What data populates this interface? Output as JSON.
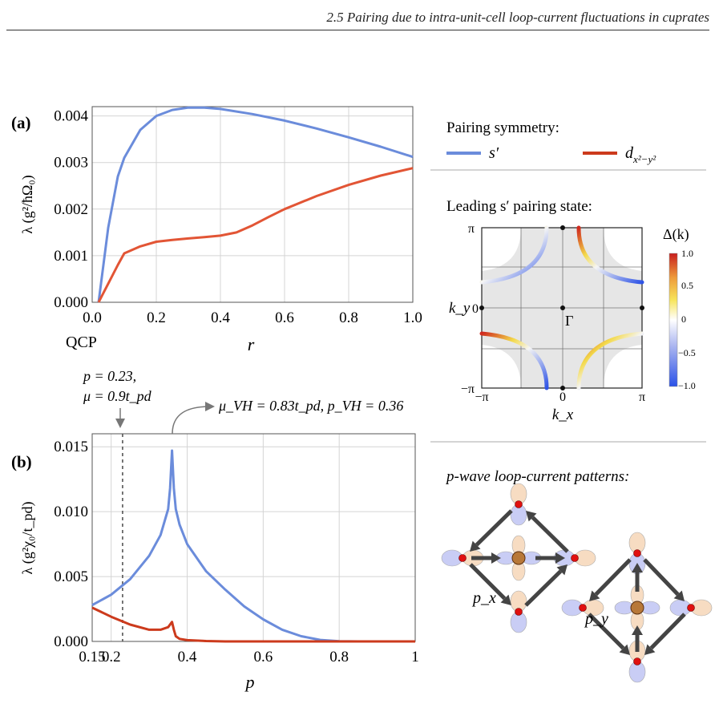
{
  "header": {
    "running_title": "2.5 Pairing due to intra-unit-cell loop-current fluctuations in cuprates"
  },
  "colors": {
    "s_prime": "#6b8cdb",
    "d_wave": "#cc3a1c",
    "d_wave_a": "#e25535",
    "grid": "#cfcfcf",
    "fermi_fill": "#e6e6e6"
  },
  "legend": {
    "title": "Pairing symmetry:",
    "s_prime_label": "s′",
    "d_label_base": "d",
    "d_label_sub": "x²−y²"
  },
  "panel_a": {
    "tag": "(a)",
    "ylabel": "λ (g²/ħΩ₀)",
    "xlabel": "r",
    "qcp_label": "QCP"
  },
  "panel_b": {
    "tag": "(b)",
    "ylabel": "λ (g²χ₀/t_pd)",
    "xlabel": "p",
    "annot_left_line1": "p = 0.23,",
    "annot_left_line2": "μ = 0.9t_pd",
    "annot_right": "μ_VH = 0.83t_pd, p_VH = 0.36"
  },
  "pairing_state": {
    "title": "Leading s′ pairing state:",
    "colorbar_label": "Δ(k)",
    "colorbar_ticks": [
      "1.0",
      "0.5",
      "0",
      "−0.5",
      "−1.0"
    ],
    "x_label": "k_x",
    "y_label": "k_y",
    "x_ticks": [
      "−π",
      "0",
      "π"
    ],
    "y_ticks": [
      "π",
      "0",
      "−π"
    ],
    "gamma_label": "Γ"
  },
  "loop_current": {
    "title": "p-wave loop-current patterns:",
    "px_label": "p_x",
    "py_label": "p_y"
  },
  "caption": {
    "text": ""
  },
  "chart_data": [
    {
      "type": "line",
      "panel": "(a)",
      "xlabel": "r",
      "ylabel": "λ (g²/ħΩ₀)",
      "xlim": [
        0,
        1.0
      ],
      "ylim": [
        0,
        0.0042
      ],
      "xticks": [
        "0.0",
        "0.2",
        "0.4",
        "0.6",
        "0.8",
        "1.0"
      ],
      "yticks": [
        "0.000",
        "0.001",
        "0.002",
        "0.003",
        "0.004"
      ],
      "grid": true,
      "series": [
        {
          "name": "s′",
          "x": [
            0.02,
            0.05,
            0.08,
            0.1,
            0.15,
            0.2,
            0.25,
            0.3,
            0.35,
            0.4,
            0.5,
            0.6,
            0.7,
            0.8,
            0.9,
            1.0
          ],
          "y": [
            0.0,
            0.0016,
            0.0027,
            0.0031,
            0.0037,
            0.004,
            0.00413,
            0.00418,
            0.00418,
            0.00415,
            0.00404,
            0.0039,
            0.00373,
            0.00354,
            0.00334,
            0.00312
          ]
        },
        {
          "name": "d_{x²−y²}",
          "x": [
            0.02,
            0.05,
            0.08,
            0.1,
            0.15,
            0.2,
            0.25,
            0.3,
            0.35,
            0.4,
            0.45,
            0.5,
            0.55,
            0.6,
            0.7,
            0.8,
            0.9,
            1.0
          ],
          "y": [
            0.0,
            0.0004,
            0.0008,
            0.00105,
            0.0012,
            0.0013,
            0.00134,
            0.00137,
            0.0014,
            0.00143,
            0.0015,
            0.00165,
            0.00183,
            0.002,
            0.00228,
            0.00252,
            0.00272,
            0.00288
          ]
        }
      ]
    },
    {
      "type": "line",
      "panel": "(b)",
      "xlabel": "p",
      "ylabel": "λ (g²χ₀/t_pd)",
      "xlim": [
        0.15,
        1.0
      ],
      "ylim": [
        0,
        0.016
      ],
      "xticks": [
        "0.15",
        "0.2",
        "0.4",
        "0.6",
        "0.8",
        "1"
      ],
      "yticks": [
        "0.000",
        "0.005",
        "0.010",
        "0.015"
      ],
      "grid": true,
      "vline": 0.23,
      "series": [
        {
          "name": "s′",
          "x": [
            0.15,
            0.2,
            0.25,
            0.3,
            0.33,
            0.35,
            0.355,
            0.36,
            0.365,
            0.37,
            0.38,
            0.4,
            0.45,
            0.5,
            0.55,
            0.6,
            0.65,
            0.7,
            0.75,
            0.8,
            0.85,
            0.9,
            1.0
          ],
          "y": [
            0.0028,
            0.0036,
            0.0048,
            0.0066,
            0.0082,
            0.0102,
            0.0118,
            0.0147,
            0.0118,
            0.0102,
            0.009,
            0.0075,
            0.0054,
            0.004,
            0.0027,
            0.0017,
            0.0009,
            0.0004,
            0.00012,
            2e-05,
            0.0,
            0.0,
            0.0
          ]
        },
        {
          "name": "d_{x²−y²}",
          "x": [
            0.15,
            0.2,
            0.25,
            0.3,
            0.33,
            0.35,
            0.36,
            0.365,
            0.37,
            0.38,
            0.4,
            0.45,
            0.5,
            0.55,
            0.6,
            0.7,
            0.8,
            1.0
          ],
          "y": [
            0.0026,
            0.0019,
            0.0013,
            0.0009,
            0.0009,
            0.0011,
            0.0015,
            0.0009,
            0.0004,
            0.0002,
            0.0001,
            3e-05,
            0.0,
            0.0,
            0.0,
            0.0,
            0.0,
            0.0
          ]
        }
      ]
    }
  ]
}
